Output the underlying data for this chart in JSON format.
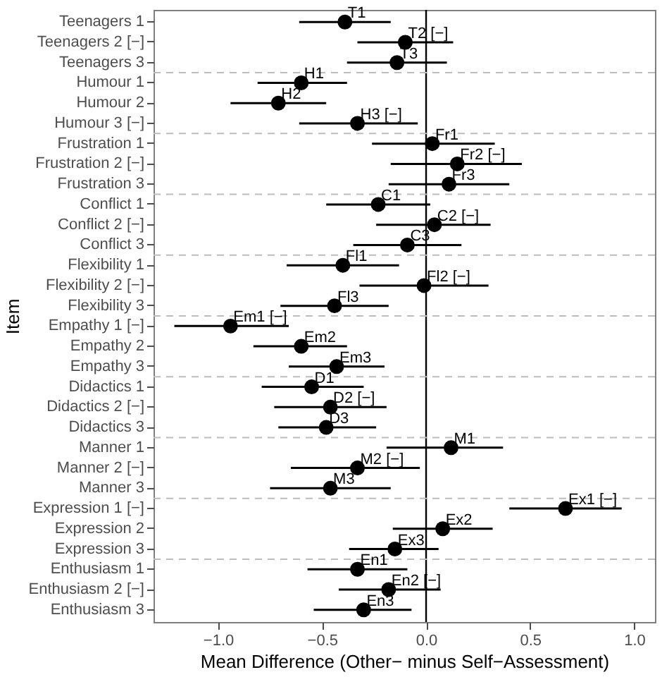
{
  "chart_data": {
    "type": "scatter",
    "orientation": "horizontal",
    "xlabel": "Mean Difference (Other− minus Self−Assessment)",
    "ylabel": "Item",
    "categories": [
      "Teenagers 1",
      "Teenagers 2 [−]",
      "Teenagers 3",
      "Humour 1",
      "Humour 2",
      "Humour 3 [−]",
      "Frustration 1",
      "Frustration 2 [−]",
      "Frustration 3",
      "Conflict 1",
      "Conflict 2 [−]",
      "Conflict 3",
      "Flexibility 1",
      "Flexibility 2 [−]",
      "Flexibility 3",
      "Empathy 1 [−]",
      "Empathy 2",
      "Empathy 3",
      "Didactics 1",
      "Didactics 2 [−]",
      "Didactics 3",
      "Manner 1",
      "Manner 2 [−]",
      "Manner 3",
      "Expression 1 [−]",
      "Expression 2",
      "Expression 3",
      "Enthusiasm 1",
      "Enthusiasm 2 [−]",
      "Enthusiasm 3"
    ],
    "series": [
      {
        "color": "#000000",
        "values": [
          -0.39,
          -0.1,
          -0.14,
          -0.6,
          -0.71,
          -0.33,
          0.03,
          0.15,
          0.11,
          -0.23,
          0.04,
          -0.09,
          -0.4,
          -0.01,
          -0.44,
          -0.94,
          -0.6,
          -0.43,
          -0.55,
          -0.46,
          -0.48,
          0.12,
          -0.33,
          -0.46,
          0.67,
          0.08,
          -0.15,
          -0.33,
          -0.18,
          -0.3
        ],
        "errors": [
          [
            -0.61,
            -0.17
          ],
          [
            -0.33,
            0.13
          ],
          [
            -0.38,
            0.1
          ],
          [
            -0.81,
            -0.38
          ],
          [
            -0.94,
            -0.48
          ],
          [
            -0.61,
            -0.04
          ],
          [
            -0.26,
            0.33
          ],
          [
            -0.17,
            0.46
          ],
          [
            -0.18,
            0.4
          ],
          [
            -0.48,
            0.02
          ],
          [
            -0.24,
            0.31
          ],
          [
            -0.35,
            0.17
          ],
          [
            -0.67,
            -0.13
          ],
          [
            -0.32,
            0.3
          ],
          [
            -0.7,
            -0.18
          ],
          [
            -1.21,
            -0.66
          ],
          [
            -0.83,
            -0.38
          ],
          [
            -0.66,
            -0.2
          ],
          [
            -0.79,
            -0.3
          ],
          [
            -0.73,
            -0.19
          ],
          [
            -0.71,
            -0.24
          ],
          [
            -0.19,
            0.37
          ],
          [
            -0.65,
            -0.03
          ],
          [
            -0.75,
            -0.17
          ],
          [
            0.4,
            0.94
          ],
          [
            -0.16,
            0.32
          ],
          [
            -0.37,
            0.06
          ],
          [
            -0.57,
            -0.09
          ],
          [
            -0.42,
            0.07
          ],
          [
            -0.54,
            -0.07
          ]
        ]
      }
    ],
    "xlim": [
      -1.31,
      1.1
    ],
    "xticks": [
      {
        "value": -1,
        "label": "−1.0"
      },
      {
        "value": -0.5,
        "label": "−0.5"
      },
      {
        "value": 0,
        "label": "0.0"
      },
      {
        "value": 0.5,
        "label": "0.5"
      },
      {
        "value": 1,
        "label": "1.0"
      }
    ],
    "marker": "circle",
    "grid": false,
    "ref_lines": [
      {
        "axis": "x",
        "value": 0,
        "color": "#000000",
        "line_style": "solid"
      },
      {
        "axis": "y",
        "value": "Teenagers 3",
        "color": "#bdbdbd",
        "line_style": "dashed"
      },
      {
        "axis": "y",
        "value": "Humour 3 [−]",
        "color": "#bdbdbd",
        "line_style": "dashed"
      },
      {
        "axis": "y",
        "value": "Frustration 3",
        "color": "#bdbdbd",
        "line_style": "dashed"
      },
      {
        "axis": "y",
        "value": "Conflict 3",
        "color": "#bdbdbd",
        "line_style": "dashed"
      },
      {
        "axis": "y",
        "value": "Flexibility 3",
        "color": "#bdbdbd",
        "line_style": "dashed"
      },
      {
        "axis": "y",
        "value": "Empathy 3",
        "color": "#bdbdbd",
        "line_style": "dashed"
      },
      {
        "axis": "y",
        "value": "Didactics 3",
        "color": "#bdbdbd",
        "line_style": "dashed"
      },
      {
        "axis": "y",
        "value": "Manner 3",
        "color": "#bdbdbd",
        "line_style": "dashed"
      },
      {
        "axis": "y",
        "value": "Expression 3",
        "color": "#bdbdbd",
        "line_style": "dashed"
      }
    ],
    "annotations": [
      {
        "text": "T1",
        "x": -0.39,
        "y": "Teenagers 1"
      },
      {
        "text": "T2 [−]",
        "x": -0.1,
        "y": "Teenagers 2 [−]"
      },
      {
        "text": "T3",
        "x": -0.14,
        "y": "Teenagers 3"
      },
      {
        "text": "H1",
        "x": -0.6,
        "y": "Humour 1"
      },
      {
        "text": "H2",
        "x": -0.71,
        "y": "Humour 2"
      },
      {
        "text": "H3 [−]",
        "x": -0.33,
        "y": "Humour 3 [−]"
      },
      {
        "text": "Fr1",
        "x": 0.03,
        "y": "Frustration 1"
      },
      {
        "text": "Fr2 [−]",
        "x": 0.15,
        "y": "Frustration 2 [−]"
      },
      {
        "text": "Fr3",
        "x": 0.11,
        "y": "Frustration 3"
      },
      {
        "text": "C1",
        "x": -0.23,
        "y": "Conflict 1"
      },
      {
        "text": "C2 [−]",
        "x": 0.04,
        "y": "Conflict 2 [−]"
      },
      {
        "text": "C3",
        "x": -0.09,
        "y": "Conflict 3"
      },
      {
        "text": "Fl1",
        "x": -0.4,
        "y": "Flexibility 1"
      },
      {
        "text": "Fl2 [−]",
        "x": -0.01,
        "y": "Flexibility 2 [−]"
      },
      {
        "text": "Fl3",
        "x": -0.44,
        "y": "Flexibility 3"
      },
      {
        "text": "Em1 [−]",
        "x": -0.94,
        "y": "Empathy 1 [−]"
      },
      {
        "text": "Em2",
        "x": -0.6,
        "y": "Empathy 2"
      },
      {
        "text": "Em3",
        "x": -0.43,
        "y": "Empathy 3"
      },
      {
        "text": "D1",
        "x": -0.55,
        "y": "Didactics 1"
      },
      {
        "text": "D2 [−]",
        "x": -0.46,
        "y": "Didactics 2 [−]"
      },
      {
        "text": "D3",
        "x": -0.48,
        "y": "Didactics 3"
      },
      {
        "text": "M1",
        "x": 0.12,
        "y": "Manner 1"
      },
      {
        "text": "M2 [−]",
        "x": -0.33,
        "y": "Manner 2 [−]"
      },
      {
        "text": "M3",
        "x": -0.46,
        "y": "Manner 3"
      },
      {
        "text": "Ex1 [−]",
        "x": 0.67,
        "y": "Expression 1 [−]"
      },
      {
        "text": "Ex2",
        "x": 0.08,
        "y": "Expression 2"
      },
      {
        "text": "Ex3",
        "x": -0.15,
        "y": "Expression 3"
      },
      {
        "text": "En1",
        "x": -0.33,
        "y": "Enthusiasm 1"
      },
      {
        "text": "En2 [−]",
        "x": -0.18,
        "y": "Enthusiasm 2 [−]"
      },
      {
        "text": "En3",
        "x": -0.3,
        "y": "Enthusiasm 3"
      }
    ]
  }
}
